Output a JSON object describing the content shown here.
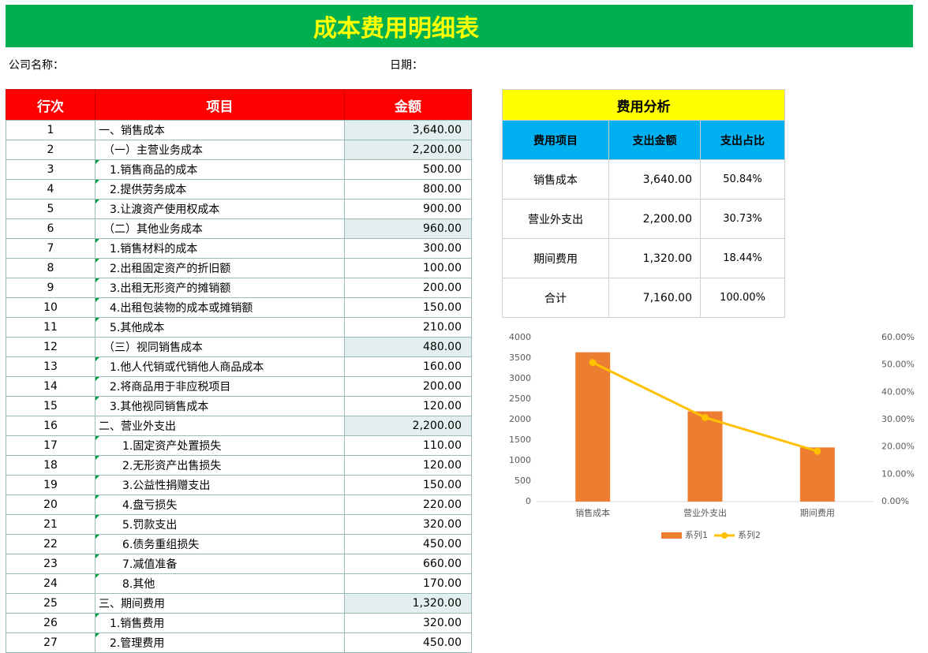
{
  "header": {
    "title": "成本费用明细表",
    "company_label": "公司名称：",
    "date_label": "日期："
  },
  "detail_table": {
    "columns": [
      "行次",
      "项目",
      "金额"
    ],
    "rows": [
      [
        1,
        "一、销售成本",
        "3,640.00"
      ],
      [
        2,
        "（一）主营业务成本",
        "2,200.00"
      ],
      [
        3,
        "1.销售商品的成本",
        "500.00"
      ],
      [
        4,
        "2.提供劳务成本",
        "800.00"
      ],
      [
        5,
        "3.让渡资产使用权成本",
        "900.00"
      ],
      [
        6,
        "（二）其他业务成本",
        "960.00"
      ],
      [
        7,
        "1.销售材料的成本",
        "300.00"
      ],
      [
        8,
        "2.出租固定资产的折旧额",
        "100.00"
      ],
      [
        9,
        "3.出租无形资产的摊销额",
        "200.00"
      ],
      [
        10,
        "4.出租包装物的成本或摊销额",
        "150.00"
      ],
      [
        11,
        "5.其他成本",
        "210.00"
      ],
      [
        12,
        "（三）视同销售成本",
        "480.00"
      ],
      [
        13,
        "1.他人代销或代销他人商品成本",
        "160.00"
      ],
      [
        14,
        "2.将商品用于非应税项目",
        "200.00"
      ],
      [
        15,
        "3.其他视同销售成本",
        "120.00"
      ],
      [
        16,
        "二、营业外支出",
        "2,200.00"
      ],
      [
        17,
        "1.固定资产处置损失",
        "110.00"
      ],
      [
        18,
        "2.无形资产出售损失",
        "120.00"
      ],
      [
        19,
        "3.公益性捐赠支出",
        "150.00"
      ],
      [
        20,
        "4.盘亏损失",
        "220.00"
      ],
      [
        21,
        "5.罚款支出",
        "320.00"
      ],
      [
        22,
        "6.债务重组损失",
        "450.00"
      ],
      [
        23,
        "7.减值准备",
        "660.00"
      ],
      [
        24,
        "8.其他",
        "170.00"
      ],
      [
        25,
        "三、期间费用",
        "1,320.00"
      ],
      [
        26,
        "1.销售费用",
        "320.00"
      ],
      [
        27,
        "2.管理费用",
        "450.00"
      ]
    ]
  },
  "summary_table": {
    "title": "费用分析",
    "columns": [
      "费用项目",
      "支出金额",
      "支出占比"
    ],
    "rows": [
      [
        "销售成本",
        "3,640.00",
        "50.84%"
      ],
      [
        "营业外支出",
        "2,200.00",
        "30.73%"
      ],
      [
        "期间费用",
        "1,320.00",
        "18.44%"
      ],
      [
        "合计",
        "7,160.00",
        "100.00%"
      ]
    ]
  },
  "chart_data": {
    "type": "bar-line",
    "categories": [
      "销售成本",
      "营业外支出",
      "期间费用"
    ],
    "series": [
      {
        "name": "系列1",
        "color": "#ed7d31",
        "type": "bar",
        "values": [
          3640,
          2200,
          1320
        ]
      },
      {
        "name": "系列2",
        "color": "#ffc000",
        "type": "line",
        "axis": "y2",
        "values": [
          50.84,
          30.73,
          18.44
        ]
      }
    ],
    "ylim": [
      0,
      4000
    ],
    "yticks": [
      0,
      500,
      1000,
      1500,
      2000,
      2500,
      3000,
      3500,
      4000
    ],
    "y2lim": [
      0,
      60
    ],
    "y2ticks": [
      {
        "value": 0,
        "label": "0.00%"
      },
      {
        "value": 10,
        "label": "10.00%"
      },
      {
        "value": 20,
        "label": "20.00%"
      },
      {
        "value": 30,
        "label": "30.00%"
      },
      {
        "value": 40,
        "label": "40.00%"
      },
      {
        "value": 50,
        "label": "50.00%"
      },
      {
        "value": 60,
        "label": "60.00%"
      }
    ],
    "grid": false,
    "legend": "bottom"
  }
}
